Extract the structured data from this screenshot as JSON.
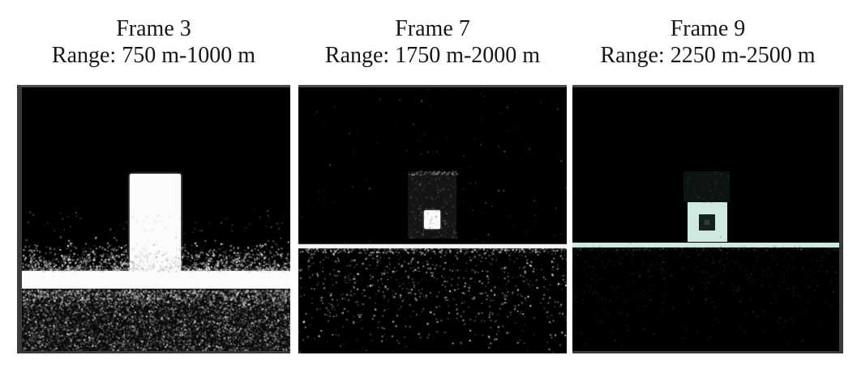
{
  "figure": {
    "panels": [
      {
        "title_line1": "Frame 3",
        "title_line2": "Range: 750 m-1000 m",
        "frame_number": 3,
        "range_min_m": 750,
        "range_max_m": 1000
      },
      {
        "title_line1": "Frame 7",
        "title_line2": "Range: 1750 m-2000 m",
        "frame_number": 7,
        "range_min_m": 1750,
        "range_max_m": 2000
      },
      {
        "title_line1": "Frame 9",
        "title_line2": "Range: 2250 m-2500 m",
        "frame_number": 9,
        "range_min_m": 2250,
        "range_max_m": 2500
      }
    ],
    "colors": {
      "page_background": "#ffffff",
      "panel_background": "#000000",
      "target_white": "#fbfbfb",
      "pale_mint": "#cfe8e2",
      "border_gray": "#3a3a3a",
      "title_text": "#161616"
    }
  }
}
